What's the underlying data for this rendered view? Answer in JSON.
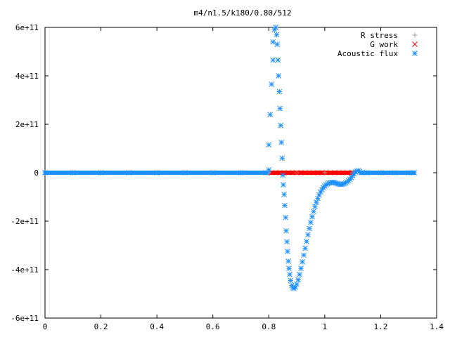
{
  "chart_data": {
    "type": "scatter",
    "title": "m4/n1.5/k180/0.80/512",
    "xlabel": "",
    "ylabel": "",
    "xlim": [
      0,
      1.4
    ],
    "ylim": [
      -600000000000.0,
      600000000000.0
    ],
    "x_ticks": [
      0,
      0.2,
      0.4,
      0.6,
      0.8,
      1,
      1.2,
      1.4
    ],
    "x_tick_labels": [
      "0",
      "0.2",
      "0.4",
      "0.6",
      "0.8",
      "1",
      "1.2",
      "1.4"
    ],
    "y_ticks": [
      -600000000000.0,
      -400000000000.0,
      -200000000000.0,
      0,
      200000000000.0,
      400000000000.0,
      600000000000.0
    ],
    "y_tick_labels": [
      "-6e+11",
      "-4e+11",
      "-2e+11",
      "0",
      "2e+11",
      "4e+11",
      "6e+11"
    ],
    "grid": false,
    "legend_position": "top-right",
    "series": [
      {
        "name": "R stress",
        "marker": "plus",
        "color": "#a0a0a0",
        "points": [
          [
            0.0,
            0
          ],
          [
            0.1,
            0
          ],
          [
            0.2,
            0
          ],
          [
            0.3,
            0
          ],
          [
            0.4,
            0
          ],
          [
            0.5,
            0
          ],
          [
            0.6,
            0
          ],
          [
            0.7,
            0
          ],
          [
            0.8,
            0
          ],
          [
            0.9,
            0
          ],
          [
            1.0,
            0
          ],
          [
            1.1,
            0
          ],
          [
            1.2,
            0
          ],
          [
            1.32,
            0
          ]
        ]
      },
      {
        "name": "G work",
        "marker": "cross",
        "color": "#ff0000",
        "points": [
          [
            0.81,
            0
          ],
          [
            0.84,
            0
          ],
          [
            0.87,
            0
          ],
          [
            0.9,
            0
          ],
          [
            0.93,
            0
          ],
          [
            0.96,
            0
          ],
          [
            0.99,
            0
          ],
          [
            1.02,
            0
          ],
          [
            1.05,
            0
          ],
          [
            1.08,
            0
          ],
          [
            1.1,
            0
          ]
        ]
      },
      {
        "name": "Acoustic flux",
        "marker": "star",
        "color": "#1e90ff",
        "points": [
          [
            0.0,
            0
          ],
          [
            0.1,
            0
          ],
          [
            0.2,
            0
          ],
          [
            0.3,
            0
          ],
          [
            0.4,
            0
          ],
          [
            0.5,
            0
          ],
          [
            0.6,
            0
          ],
          [
            0.7,
            0
          ],
          [
            0.79,
            0
          ],
          [
            0.8,
            12000000000.0
          ],
          [
            0.8,
            115000000000.0
          ],
          [
            0.805,
            240000000000.0
          ],
          [
            0.81,
            365000000000.0
          ],
          [
            0.815,
            465000000000.0
          ],
          [
            0.815,
            540000000000.0
          ],
          [
            0.82,
            590000000000.0
          ],
          [
            0.825,
            600000000000.0
          ],
          [
            0.828,
            570000000000.0
          ],
          [
            0.83,
            530000000000.0
          ],
          [
            0.833,
            465000000000.0
          ],
          [
            0.835,
            400000000000.0
          ],
          [
            0.838,
            335000000000.0
          ],
          [
            0.84,
            265000000000.0
          ],
          [
            0.843,
            195000000000.0
          ],
          [
            0.845,
            125000000000.0
          ],
          [
            0.848,
            60000000000.0
          ],
          [
            0.85,
            -10000000000.0
          ],
          [
            0.852,
            -50000000000.0
          ],
          [
            0.855,
            -90000000000.0
          ],
          [
            0.857,
            -135000000000.0
          ],
          [
            0.86,
            -185000000000.0
          ],
          [
            0.862,
            -240000000000.0
          ],
          [
            0.865,
            -285000000000.0
          ],
          [
            0.867,
            -325000000000.0
          ],
          [
            0.87,
            -365000000000.0
          ],
          [
            0.872,
            -395000000000.0
          ],
          [
            0.875,
            -420000000000.0
          ],
          [
            0.878,
            -445000000000.0
          ],
          [
            0.882,
            -465000000000.0
          ],
          [
            0.886,
            -475000000000.0
          ],
          [
            0.89,
            -478000000000.0
          ],
          [
            0.895,
            -472000000000.0
          ],
          [
            0.9,
            -460000000000.0
          ],
          [
            0.905,
            -442000000000.0
          ],
          [
            0.91,
            -420000000000.0
          ],
          [
            0.915,
            -395000000000.0
          ],
          [
            0.92,
            -368000000000.0
          ],
          [
            0.925,
            -340000000000.0
          ],
          [
            0.93,
            -312000000000.0
          ],
          [
            0.935,
            -284000000000.0
          ],
          [
            0.94,
            -256000000000.0
          ],
          [
            0.945,
            -230000000000.0
          ],
          [
            0.95,
            -205000000000.0
          ],
          [
            0.955,
            -182000000000.0
          ],
          [
            0.96,
            -160000000000.0
          ],
          [
            0.965,
            -140000000000.0
          ],
          [
            0.97,
            -122000000000.0
          ],
          [
            0.975,
            -106000000000.0
          ],
          [
            0.98,
            -92000000000.0
          ],
          [
            0.985,
            -80000000000.0
          ],
          [
            0.99,
            -70000000000.0
          ],
          [
            0.995,
            -62000000000.0
          ],
          [
            1.0,
            -55000000000.0
          ],
          [
            1.005,
            -50000000000.0
          ],
          [
            1.01,
            -46000000000.0
          ],
          [
            1.015,
            -43000000000.0
          ],
          [
            1.02,
            -41000000000.0
          ],
          [
            1.025,
            -40000000000.0
          ],
          [
            1.03,
            -40000000000.0
          ],
          [
            1.035,
            -41000000000.0
          ],
          [
            1.04,
            -43000000000.0
          ],
          [
            1.045,
            -45000000000.0
          ],
          [
            1.05,
            -47000000000.0
          ],
          [
            1.055,
            -48000000000.0
          ],
          [
            1.06,
            -48000000000.0
          ],
          [
            1.065,
            -47000000000.0
          ],
          [
            1.07,
            -45000000000.0
          ],
          [
            1.075,
            -42000000000.0
          ],
          [
            1.08,
            -38000000000.0
          ],
          [
            1.085,
            -33000000000.0
          ],
          [
            1.09,
            -27000000000.0
          ],
          [
            1.095,
            -20000000000.0
          ],
          [
            1.1,
            -12000000000.0
          ],
          [
            1.105,
            -4000000000.0
          ],
          [
            1.11,
            3000000000.0
          ],
          [
            1.115,
            7000000000.0
          ],
          [
            1.12,
            8000000000.0
          ],
          [
            1.125,
            5000000000.0
          ],
          [
            1.13,
            0
          ],
          [
            1.15,
            0
          ],
          [
            1.2,
            0
          ],
          [
            1.25,
            0
          ],
          [
            1.3,
            0
          ],
          [
            1.32,
            0
          ]
        ]
      }
    ]
  }
}
